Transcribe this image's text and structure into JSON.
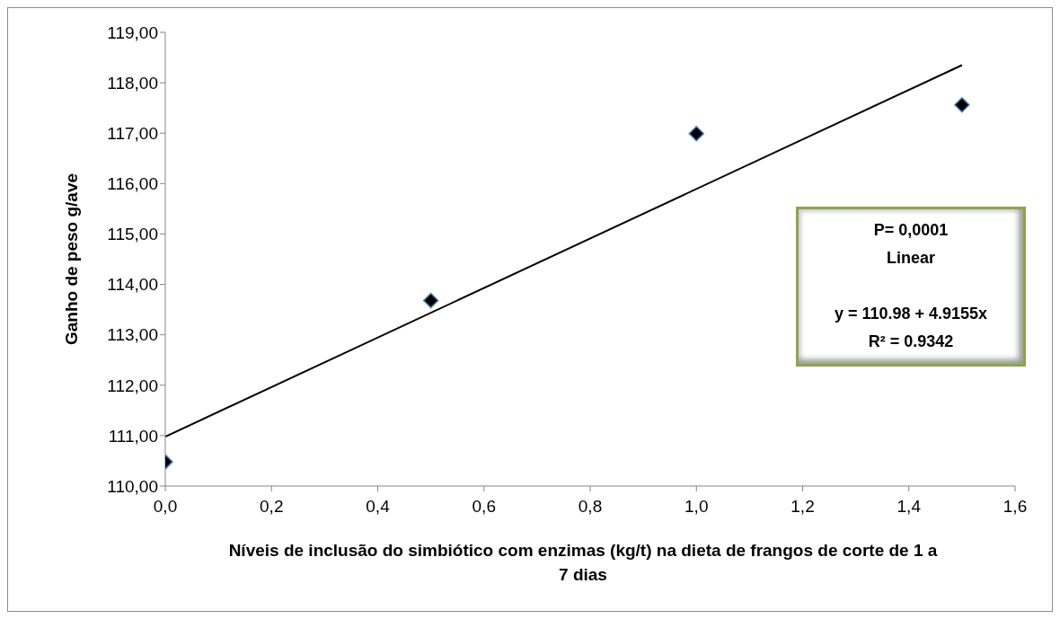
{
  "chart_data": {
    "type": "scatter",
    "xlabel": "Níveis de inclusão do simbiótico com enzimas (kg/t) na dieta de frangos de corte de 1 a 7 dias",
    "ylabel": "Ganho de peso g/ave",
    "series": [
      {
        "color": "#000000",
        "marker": "diamond",
        "x": [
          0,
          0.5,
          1.0,
          1.5
        ],
        "values": [
          110.48,
          113.68,
          116.99,
          117.56
        ]
      },
      {
        "type": "line",
        "color": "#000000",
        "marker": "none",
        "line_style": "solid",
        "x": [
          0,
          1.5
        ],
        "values": [
          110.98,
          118.35
        ]
      }
    ],
    "xlim": [
      0,
      1.6
    ],
    "xticks": [
      {
        "value": 0,
        "label": "0,0"
      },
      {
        "value": 0.2,
        "label": "0,2"
      },
      {
        "value": 0.4,
        "label": "0,4"
      },
      {
        "value": 0.6,
        "label": "0,6"
      },
      {
        "value": 0.8,
        "label": "0,8"
      },
      {
        "value": 1.0,
        "label": "1,0"
      },
      {
        "value": 1.2,
        "label": "1,2"
      },
      {
        "value": 1.4,
        "label": "1,4"
      },
      {
        "value": 1.6,
        "label": "1,6"
      }
    ],
    "ylim": [
      110,
      119
    ],
    "yticks": [
      {
        "value": 110,
        "label": "110,00"
      },
      {
        "value": 111,
        "label": "111,00"
      },
      {
        "value": 112,
        "label": "112,00"
      },
      {
        "value": 113,
        "label": "113,00"
      },
      {
        "value": 114,
        "label": "114,00"
      },
      {
        "value": 115,
        "label": "115,00"
      },
      {
        "value": 116,
        "label": "116,00"
      },
      {
        "value": 117,
        "label": "117,00"
      },
      {
        "value": 118,
        "label": "118,00"
      },
      {
        "value": 119,
        "label": "119,00"
      }
    ],
    "annotations": [
      "P= 0,0001",
      "Linear",
      "y =  110.98 + 4.9155x",
      "R² = 0.9342"
    ],
    "grid": false
  }
}
